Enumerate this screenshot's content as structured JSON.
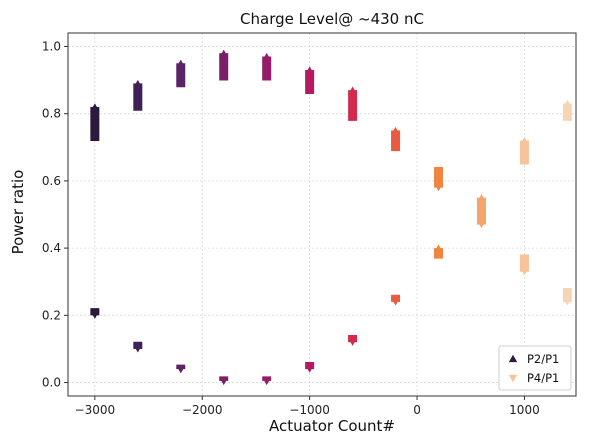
{
  "chart_data": {
    "type": "scatter",
    "title": "Charge Level@ ~430 nC",
    "xlabel": "Actuator Count#",
    "ylabel": "Power ratio",
    "xlim": [
      -3250,
      1480
    ],
    "ylim": [
      -0.04,
      1.04
    ],
    "xticks": [
      -3000,
      -2000,
      -1000,
      0,
      1000
    ],
    "xtick_labels": [
      "−3000",
      "−2000",
      "−1000",
      "0",
      "1000"
    ],
    "yticks": [
      0.0,
      0.2,
      0.4,
      0.6,
      0.8,
      1.0
    ],
    "ytick_labels": [
      "0.0",
      "0.2",
      "0.4",
      "0.6",
      "0.8",
      "1.0"
    ],
    "grid": true,
    "legend_position": "lower-right",
    "x": [
      -3000,
      -2600,
      -2200,
      -1800,
      -1400,
      -1000,
      -600,
      -200,
      200,
      600,
      1000,
      1400
    ],
    "colors": [
      "#2a1a3e",
      "#3e2257",
      "#5c2367",
      "#7a1f6a",
      "#961b68",
      "#b61a5e",
      "#d42a4e",
      "#e95a3e",
      "#f1843f",
      "#f5a56b",
      "#f6c39a",
      "#f7d4b4"
    ],
    "series": [
      {
        "name": "P2/P1",
        "marker": "triangle-up",
        "ranges": [
          [
            0.72,
            0.82
          ],
          [
            0.81,
            0.89
          ],
          [
            0.88,
            0.95
          ],
          [
            0.9,
            0.98
          ],
          [
            0.9,
            0.97
          ],
          [
            0.86,
            0.93
          ],
          [
            0.78,
            0.87
          ],
          [
            0.69,
            0.75
          ],
          [
            0.37,
            0.4
          ],
          [
            0.49,
            0.55
          ],
          [
            0.65,
            0.72
          ],
          [
            0.78,
            0.83
          ]
        ]
      },
      {
        "name": "P4/P1",
        "marker": "triangle-down",
        "ranges": [
          [
            0.2,
            0.22
          ],
          [
            0.1,
            0.12
          ],
          [
            0.04,
            0.05
          ],
          [
            0.005,
            0.015
          ],
          [
            0.005,
            0.015
          ],
          [
            0.04,
            0.06
          ],
          [
            0.12,
            0.14
          ],
          [
            0.24,
            0.26
          ],
          [
            0.58,
            0.64
          ],
          [
            0.47,
            0.52
          ],
          [
            0.33,
            0.38
          ],
          [
            0.24,
            0.28
          ]
        ]
      }
    ]
  }
}
